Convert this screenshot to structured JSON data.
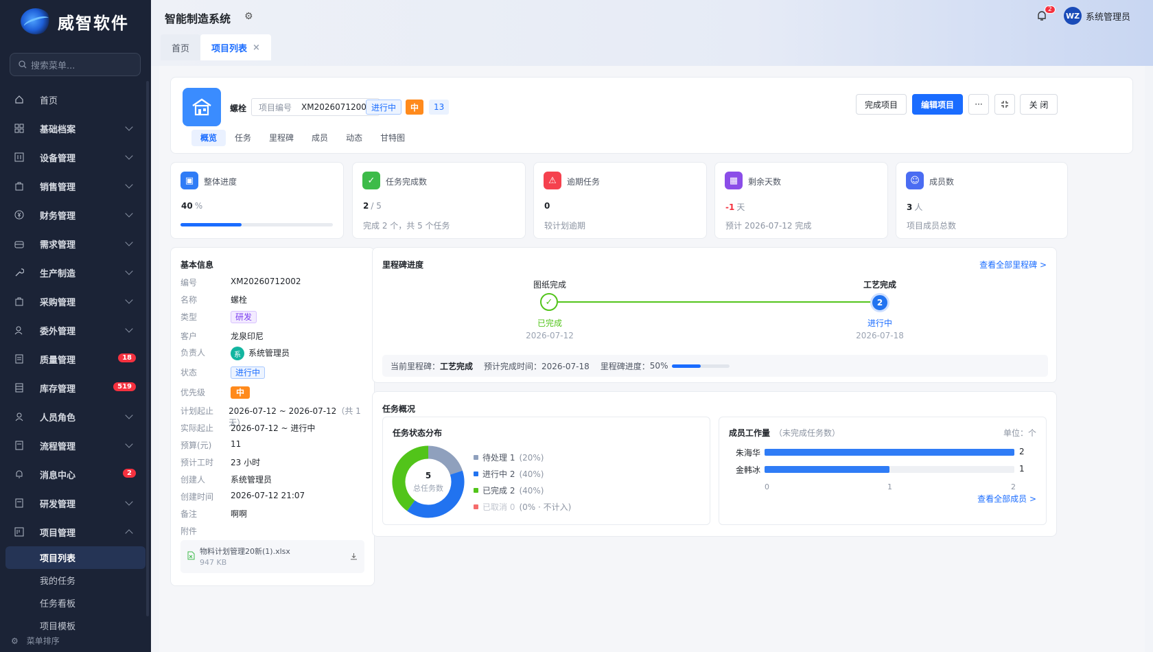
{
  "brand": {
    "name": "威智软件"
  },
  "sidebar": {
    "search_placeholder": "搜索菜单...",
    "items": [
      {
        "label": "首页",
        "icon": "home-icon"
      },
      {
        "label": "基础档案",
        "icon": "grid-icon"
      },
      {
        "label": "设备管理",
        "icon": "device-icon"
      },
      {
        "label": "销售管理",
        "icon": "bag-icon"
      },
      {
        "label": "财务管理",
        "icon": "yen-icon"
      },
      {
        "label": "需求管理",
        "icon": "box-icon"
      },
      {
        "label": "生产制造",
        "icon": "wrench-icon"
      },
      {
        "label": "采购管理",
        "icon": "cart-icon"
      },
      {
        "label": "委外管理",
        "icon": "people-icon"
      },
      {
        "label": "质量管理",
        "icon": "doc-icon",
        "badge": "18"
      },
      {
        "label": "库存管理",
        "icon": "stock-icon",
        "badge": "519"
      },
      {
        "label": "人员角色",
        "icon": "user-icon"
      },
      {
        "label": "流程管理",
        "icon": "flow-icon"
      },
      {
        "label": "消息中心",
        "icon": "bell-icon",
        "badge": "2"
      },
      {
        "label": "研发管理",
        "icon": "lab-icon"
      },
      {
        "label": "项目管理",
        "icon": "project-icon"
      }
    ],
    "subitems": [
      "项目列表",
      "我的任务",
      "任务看板",
      "项目模板"
    ],
    "sort_label": "菜单排序"
  },
  "header": {
    "title": "智能制造系统",
    "tabs": [
      "首页",
      "项目列表"
    ],
    "notif_count": "2",
    "avatar": "WZ",
    "user": "系统管理员"
  },
  "project": {
    "name": "螺栓",
    "code_label": "项目编号",
    "code": "XM20260712002",
    "status": "进行中",
    "priority": "中",
    "count": "13",
    "tabs": [
      "概览",
      "任务",
      "里程碑",
      "成员",
      "动态",
      "甘特图"
    ],
    "buttons": {
      "complete": "完成项目",
      "edit": "编辑项目",
      "more": "···",
      "close": "关 闭"
    }
  },
  "stats": [
    {
      "label": "整体进度",
      "value": "40",
      "unit": "%",
      "progress": 0.4,
      "color": "#2f7cf6"
    },
    {
      "label": "任务完成数",
      "value": "2",
      "unit": "/ 5",
      "note": "完成 2 个，共 5 个任务",
      "color": "#3dbb49"
    },
    {
      "label": "逾期任务",
      "value": "0",
      "note": "较计划逾期",
      "color": "#f5414e"
    },
    {
      "label": "剩余天数",
      "value": "-1",
      "unit": "天",
      "note": "预计 2026-07-12 完成",
      "color": "#8b4de8"
    },
    {
      "label": "成员数",
      "value": "3",
      "unit": "人",
      "note": "项目成员总数",
      "color": "#4a6cf2"
    }
  ],
  "basic": {
    "title": "基本信息",
    "rows": [
      {
        "k": "编号",
        "v": "XM20260712002"
      },
      {
        "k": "名称",
        "v": "螺栓"
      },
      {
        "k": "类型",
        "v": "研发"
      },
      {
        "k": "客户",
        "v": "龙泉印尼"
      },
      {
        "k": "负责人",
        "v": "系统管理员",
        "avatar": "系"
      },
      {
        "k": "状态",
        "v": "进行中"
      },
      {
        "k": "优先级",
        "v": "中"
      },
      {
        "k": "计划起止",
        "v": "2026-07-12 ~ 2026-07-12",
        "extra": "（共 1 天）"
      },
      {
        "k": "实际起止",
        "v": "2026-07-12 ~ 进行中"
      },
      {
        "k": "预算(元)",
        "v": "11"
      },
      {
        "k": "预计工时",
        "v": "23 小时"
      },
      {
        "k": "创建人",
        "v": "系统管理员"
      },
      {
        "k": "创建时间",
        "v": "2026-07-12 21:07"
      },
      {
        "k": "备注",
        "v": "啊啊"
      },
      {
        "k": "附件",
        "v": ""
      }
    ],
    "attachment": {
      "name": "物料计划管理20新(1).xlsx",
      "size": "947 KB"
    }
  },
  "milestones": {
    "title": "里程碑进度",
    "link": "查看全部里程碑 >",
    "nodes": [
      {
        "name": "图纸完成",
        "status": "已完成",
        "date": "2026-07-12",
        "mark": "✓"
      },
      {
        "name": "工艺完成",
        "status": "进行中",
        "date": "2026-07-18",
        "mark": "2"
      }
    ],
    "current_label": "当前里程碑：",
    "current": "工艺完成",
    "eta": "预计完成时间：2026-07-18",
    "progress_label": "里程碑进度：",
    "progress": "50%"
  },
  "tasks": {
    "title": "任务概况",
    "dist_title": "任务状态分布",
    "total": "5",
    "total_label": "总任务数",
    "legend": [
      {
        "label": "待处理 1",
        "pct": "(20%)",
        "value": 1,
        "color": "#8fa0bd"
      },
      {
        "label": "进行中 2",
        "pct": "(40%)",
        "value": 2,
        "color": "#2173f0"
      },
      {
        "label": "已完成 2",
        "pct": "(40%)",
        "value": 2,
        "color": "#52c41a"
      },
      {
        "label": "已取消 0",
        "pct": "(0% · 不计入)",
        "value": 0,
        "color": "#f56c6c"
      }
    ],
    "workload_title": "成员工作量",
    "workload_sub": "（未完成任务数）",
    "unit": "单位：个",
    "workload": [
      {
        "name": "朱海华",
        "value": 2
      },
      {
        "name": "金韩冰",
        "value": 1
      }
    ],
    "axis": [
      "0",
      "1",
      "2"
    ],
    "link": "查看全部成员 >"
  }
}
